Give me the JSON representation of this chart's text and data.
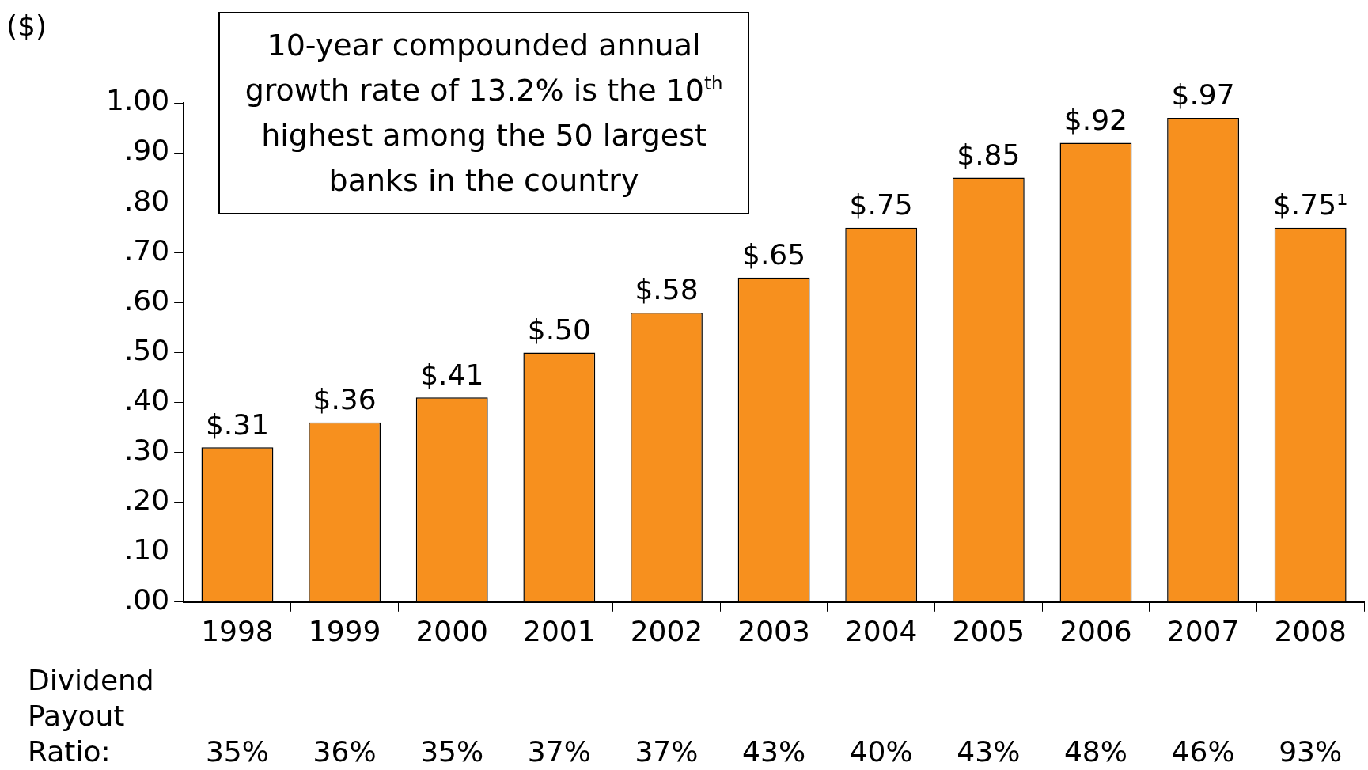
{
  "chart_data": {
    "type": "bar",
    "ylabel": "($)",
    "categories": [
      "1998",
      "1999",
      "2000",
      "2001",
      "2002",
      "2003",
      "2004",
      "2005",
      "2006",
      "2007",
      "2008"
    ],
    "values": [
      0.31,
      0.36,
      0.41,
      0.5,
      0.58,
      0.65,
      0.75,
      0.85,
      0.92,
      0.97,
      0.75
    ],
    "value_labels": [
      "$.31",
      "$.36",
      "$.41",
      "$.50",
      "$.58",
      "$.65",
      "$.75",
      "$.85",
      "$.92",
      "$.97",
      "$.75¹"
    ],
    "color": "#f7901e",
    "ylim": [
      0,
      1
    ],
    "yticks": [
      {
        "value": 0,
        "label": ".00"
      },
      {
        "value": 0.1,
        "label": ".10"
      },
      {
        "value": 0.2,
        "label": ".20"
      },
      {
        "value": 0.3,
        "label": ".30"
      },
      {
        "value": 0.4,
        "label": ".40"
      },
      {
        "value": 0.5,
        "label": ".50"
      },
      {
        "value": 0.6,
        "label": ".60"
      },
      {
        "value": 0.7,
        "label": ".70"
      },
      {
        "value": 0.8,
        "label": ".80"
      },
      {
        "value": 0.9,
        "label": ".90"
      },
      {
        "value": 1,
        "label": "1.00"
      }
    ],
    "grid": false,
    "legend": false,
    "annotations": [
      "10-year compounded annual growth rate of 13.2% is the 10$^{th}$ highest among the 50 largest banks in the country",
      "Dividend Payout Ratio:",
      "35%",
      "36%",
      "35%",
      "37%",
      "37%",
      "43%",
      "40%",
      "43%",
      "48%",
      "46%",
      "93%"
    ]
  }
}
